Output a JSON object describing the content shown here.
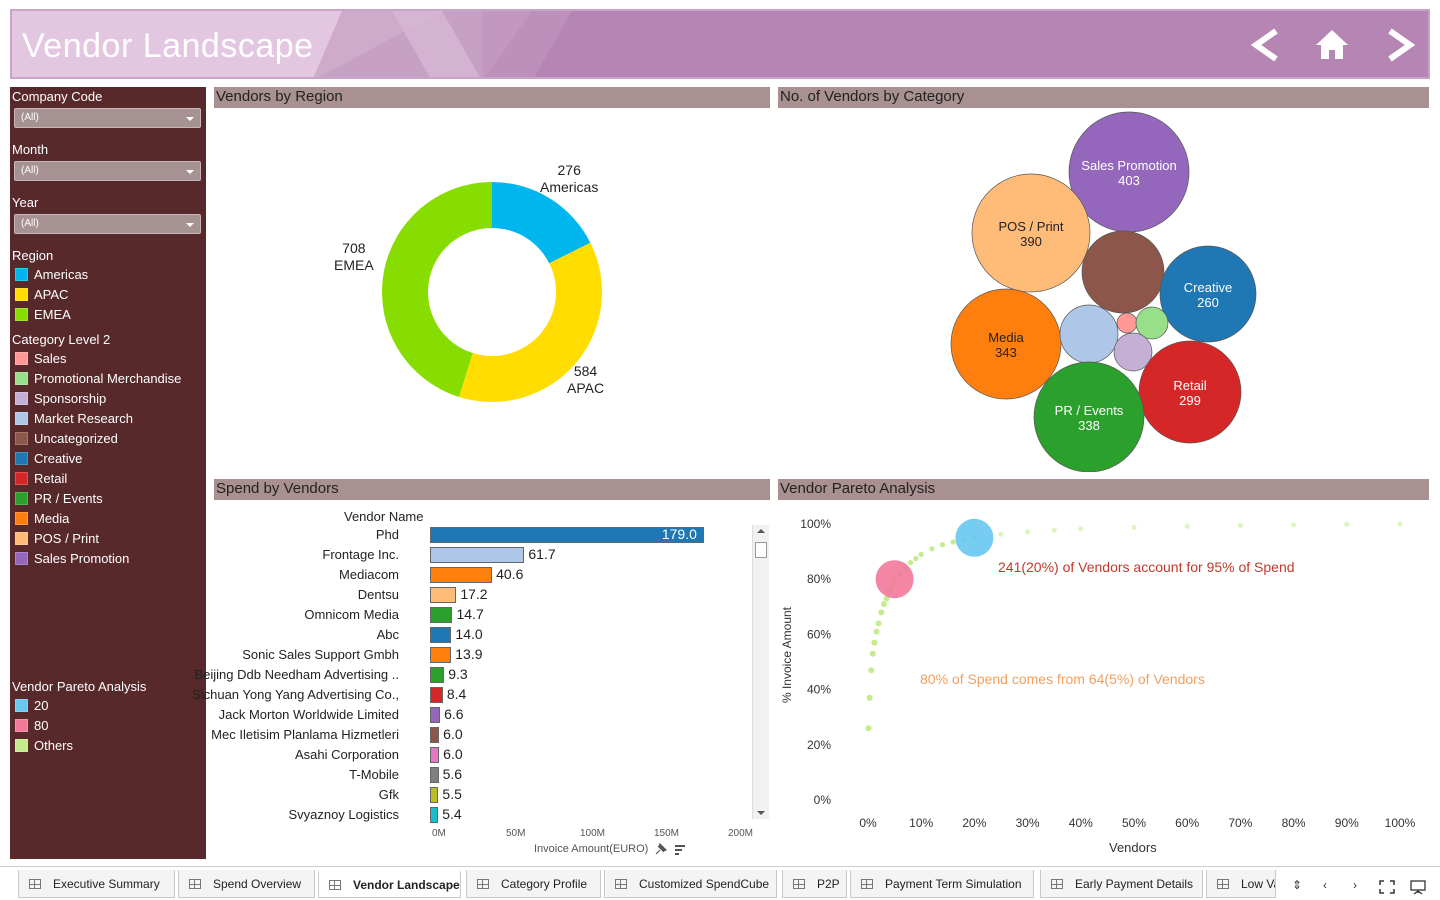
{
  "header": {
    "title": "Vendor Landscape",
    "nav": [
      "back-arrow-icon",
      "home-icon",
      "forward-arrow-icon"
    ]
  },
  "filters": {
    "company_code": {
      "label": "Company Code",
      "value": "(All)"
    },
    "month": {
      "label": "Month",
      "value": "(All)"
    },
    "year": {
      "label": "Year",
      "value": "(All)"
    }
  },
  "region_legend": {
    "title": "Region",
    "items": [
      {
        "label": "Americas",
        "color": "#00b6ef"
      },
      {
        "label": "APAC",
        "color": "#ffdd00"
      },
      {
        "label": "EMEA",
        "color": "#88dd00"
      }
    ]
  },
  "category_legend": {
    "title": "Category Level 2",
    "items": [
      {
        "label": "Sales",
        "color": "#ff9896"
      },
      {
        "label": "Promotional Merchandise",
        "color": "#98df8a"
      },
      {
        "label": "Sponsorship",
        "color": "#c5b0d5"
      },
      {
        "label": "Market Research",
        "color": "#aec7e8"
      },
      {
        "label": "Uncategorized",
        "color": "#8c564b"
      },
      {
        "label": "Creative",
        "color": "#1f77b4"
      },
      {
        "label": "Retail",
        "color": "#d62728"
      },
      {
        "label": "PR / Events",
        "color": "#2ca02c"
      },
      {
        "label": "Media",
        "color": "#ff7f0e"
      },
      {
        "label": "POS / Print",
        "color": "#ffbb78"
      },
      {
        "label": "Sales Promotion",
        "color": "#9467bd"
      }
    ]
  },
  "pareto_legend": {
    "title": "Vendor Pareto Analysis",
    "items": [
      {
        "label": "20",
        "color": "#67c8f0"
      },
      {
        "label": "80",
        "color": "#f2799a"
      },
      {
        "label": "Others",
        "color": "#c4ec8e"
      }
    ]
  },
  "sections": {
    "region": "Vendors by Region",
    "category": "No. of Vendors by Category",
    "spend": "Spend by Vendors",
    "pareto": "Vendor Pareto Analysis"
  },
  "chart_data": [
    {
      "type": "pie",
      "title": "Vendors by Region",
      "slices": [
        {
          "label": "Americas",
          "value": 276,
          "color": "#00b6ef"
        },
        {
          "label": "APAC",
          "value": 584,
          "color": "#ffdd00"
        },
        {
          "label": "EMEA",
          "value": 708,
          "color": "#88dd00"
        }
      ]
    },
    {
      "type": "scatter",
      "title": "No. of Vendors by Category",
      "bubbles": [
        {
          "label": "Sales Promotion",
          "value": 403,
          "color": "#9467bd"
        },
        {
          "label": "POS / Print",
          "value": 390,
          "color": "#ffbb78"
        },
        {
          "label": "Uncategorized",
          "value": "",
          "color": "#8c564b"
        },
        {
          "label": "Creative",
          "value": 260,
          "color": "#1f77b4"
        },
        {
          "label": "Media",
          "value": 343,
          "color": "#ff7f0e"
        },
        {
          "label": "Market Research",
          "value": "",
          "color": "#aec7e8"
        },
        {
          "label": "Sales",
          "value": "",
          "color": "#ff9896"
        },
        {
          "label": "Promotional Merchandise",
          "value": "",
          "color": "#98df8a"
        },
        {
          "label": "Sponsorship",
          "value": "",
          "color": "#c5b0d5"
        },
        {
          "label": "Retail",
          "value": 299,
          "color": "#d62728"
        },
        {
          "label": "PR / Events",
          "value": 338,
          "color": "#2ca02c"
        }
      ]
    },
    {
      "type": "bar",
      "title": "Spend by Vendors",
      "ylabel": "Vendor Name",
      "xlabel": "Invoice Amount(EURO)",
      "xlim": [
        0,
        200
      ],
      "xticks": [
        "0M",
        "50M",
        "100M",
        "150M",
        "200M"
      ],
      "bars": [
        {
          "name": "Phd",
          "value": 179.0,
          "label": "179.0",
          "color": "#1f77b4"
        },
        {
          "name": "Frontage Inc.",
          "value": 61.7,
          "label": "61.7",
          "color": "#aec7e8"
        },
        {
          "name": "Mediacom",
          "value": 40.6,
          "label": "40.6",
          "color": "#ff7f0e"
        },
        {
          "name": "Dentsu",
          "value": 17.2,
          "label": "17.2",
          "color": "#ffbb78"
        },
        {
          "name": "Omnicom Media",
          "value": 14.7,
          "label": "14.7",
          "color": "#2ca02c"
        },
        {
          "name": "Abc",
          "value": 14.0,
          "label": "14.0",
          "color": "#1f77b4"
        },
        {
          "name": "Sonic Sales Support Gmbh",
          "value": 13.9,
          "label": "13.9",
          "color": "#ff7f0e"
        },
        {
          "name": "Beijing Ddb Needham Advertising ..",
          "value": 9.3,
          "label": "9.3",
          "color": "#2ca02c"
        },
        {
          "name": "Sichuan Yong Yang Advertising Co.,",
          "value": 8.4,
          "label": "8.4",
          "color": "#d62728"
        },
        {
          "name": "Jack Morton Worldwide Limited",
          "value": 6.6,
          "label": "6.6",
          "color": "#9467bd"
        },
        {
          "name": "Mec Iletisim Planlama Hizmetleri",
          "value": 6.0,
          "label": "6.0",
          "color": "#8c564b"
        },
        {
          "name": "Asahi Corporation",
          "value": 6.0,
          "label": "6.0",
          "color": "#e377c2"
        },
        {
          "name": "T-Mobile",
          "value": 5.6,
          "label": "5.6",
          "color": "#7f7f7f"
        },
        {
          "name": "Gfk",
          "value": 5.5,
          "label": "5.5",
          "color": "#bcbd22"
        },
        {
          "name": "Svyaznoy Logistics",
          "value": 5.4,
          "label": "5.4",
          "color": "#17becf"
        }
      ]
    },
    {
      "type": "scatter",
      "title": "Vendor Pareto Analysis",
      "xlabel": "Vendors",
      "ylabel": "% Invoice Amount",
      "xlim": [
        0,
        100
      ],
      "ylim": [
        0,
        100
      ],
      "xticks": [
        "0%",
        "10%",
        "20%",
        "30%",
        "40%",
        "50%",
        "60%",
        "70%",
        "80%",
        "90%",
        "100%"
      ],
      "yticks": [
        "0%",
        "20%",
        "40%",
        "60%",
        "80%",
        "100%"
      ],
      "highlight_points": [
        {
          "group": "20",
          "x": 20,
          "y": 95,
          "color": "#67c8f0"
        },
        {
          "group": "80",
          "x": 5,
          "y": 80,
          "color": "#f2799a"
        }
      ],
      "curve_points": [
        [
          0.1,
          26
        ],
        [
          0.3,
          37
        ],
        [
          0.6,
          47
        ],
        [
          0.9,
          53
        ],
        [
          1.2,
          57
        ],
        [
          1.6,
          61
        ],
        [
          2,
          64
        ],
        [
          2.5,
          68
        ],
        [
          3,
          71
        ],
        [
          3.5,
          73
        ],
        [
          4,
          76
        ],
        [
          4.5,
          78
        ],
        [
          5,
          80
        ],
        [
          6,
          82
        ],
        [
          7,
          84
        ],
        [
          8,
          86
        ],
        [
          9,
          87.5
        ],
        [
          10,
          89
        ],
        [
          12,
          91
        ],
        [
          14,
          92.5
        ],
        [
          16,
          93.5
        ],
        [
          18,
          94.3
        ],
        [
          20,
          95
        ],
        [
          25,
          96.3
        ],
        [
          30,
          97.2
        ],
        [
          35,
          97.8
        ],
        [
          40,
          98.2
        ],
        [
          50,
          98.8
        ],
        [
          60,
          99.2
        ],
        [
          70,
          99.5
        ],
        [
          80,
          99.7
        ],
        [
          90,
          99.9
        ],
        [
          100,
          100
        ]
      ],
      "annotations": [
        {
          "text": "241(20%) of Vendors account for 95% of Spend",
          "color": "#c0392b"
        },
        {
          "text": "80% of Spend comes from 64(5%) of Vendors",
          "color": "#f0a060"
        }
      ]
    }
  ],
  "tabs": [
    {
      "label": "Executive Summary",
      "active": false
    },
    {
      "label": "Spend Overview",
      "active": false
    },
    {
      "label": "Vendor Landscape",
      "active": true
    },
    {
      "label": "Category Profile",
      "active": false
    },
    {
      "label": "Customized SpendCube",
      "active": false
    },
    {
      "label": "P2P",
      "active": false
    },
    {
      "label": "Payment Term Simulation",
      "active": false
    },
    {
      "label": "Early Payment Details",
      "active": false
    },
    {
      "label": "Low Va",
      "active": false
    }
  ]
}
